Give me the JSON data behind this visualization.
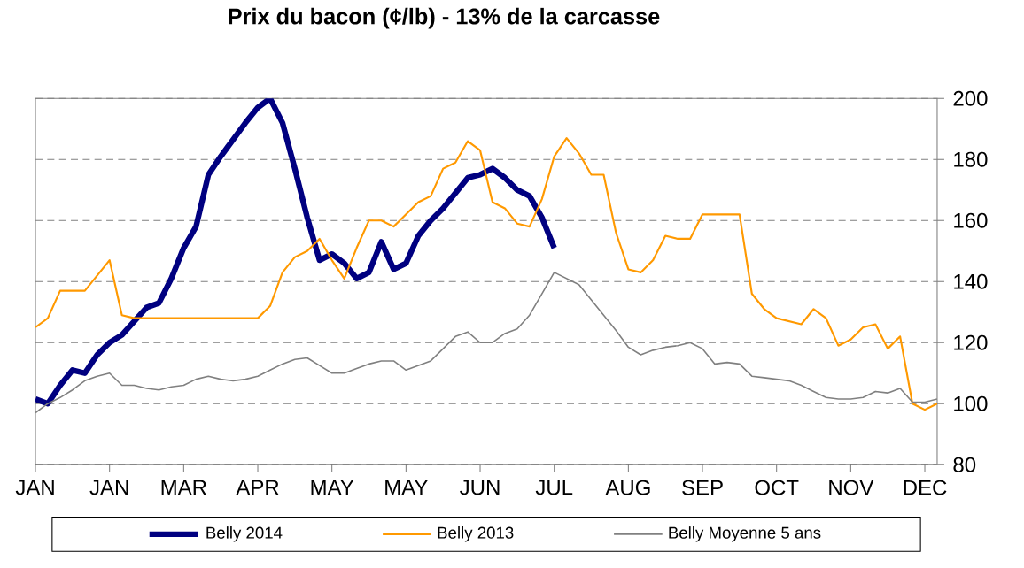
{
  "chart_data": {
    "type": "line",
    "title": "Prix du bacon (¢/lb) - 13% de la carcasse",
    "categories": [
      "JAN",
      null,
      null,
      null,
      null,
      null,
      "JAN",
      null,
      null,
      null,
      null,
      null,
      "MAR",
      null,
      null,
      null,
      null,
      null,
      "APR",
      null,
      null,
      null,
      null,
      null,
      "MAY",
      null,
      null,
      null,
      null,
      null,
      "MAY",
      null,
      null,
      null,
      null,
      null,
      "JUN",
      null,
      null,
      null,
      null,
      null,
      "JUL",
      null,
      null,
      null,
      null,
      null,
      "AUG",
      null,
      null,
      null,
      null,
      null,
      "SEP",
      null,
      null,
      null,
      null,
      null,
      "OCT",
      null,
      null,
      null,
      null,
      null,
      "NOV",
      null,
      null,
      null,
      null,
      null,
      "DEC",
      null
    ],
    "ylim": [
      80,
      200
    ],
    "yticks": [
      80,
      100,
      120,
      140,
      160,
      180,
      200
    ],
    "grid": "y",
    "legend": "bottom",
    "marker": "none",
    "series": [
      {
        "name": "Belly 2014",
        "color": "#000080",
        "values": [
          101.5,
          100,
          106,
          111,
          110,
          116,
          120,
          122.5,
          127,
          131.5,
          133,
          141,
          151,
          158,
          175,
          181,
          186.5,
          192,
          197,
          200,
          192,
          177,
          161,
          147,
          149,
          146,
          141,
          143,
          153,
          144,
          146,
          155,
          160,
          164,
          169,
          174,
          175,
          177,
          174,
          170,
          168,
          161,
          151,
          null,
          null,
          null,
          null,
          null,
          null,
          null,
          null,
          null,
          null,
          null,
          null,
          null,
          null,
          null,
          null,
          null,
          null,
          null,
          null,
          null,
          null,
          null,
          null,
          null,
          null,
          null,
          null,
          null,
          null,
          null
        ]
      },
      {
        "name": "Belly 2013",
        "color": "#ff9900",
        "values": [
          125,
          128,
          137,
          137,
          137,
          142,
          147,
          129,
          128,
          128,
          128,
          128,
          128,
          128,
          128,
          128,
          128,
          128,
          128,
          132,
          143,
          148,
          150,
          154,
          147,
          141,
          151,
          160,
          160,
          158,
          162,
          166,
          168,
          177,
          179,
          186,
          183,
          166,
          164,
          159,
          158,
          167,
          181,
          187,
          182,
          175,
          175,
          156,
          144,
          143,
          147,
          155,
          154,
          154,
          162,
          162,
          162,
          162,
          136,
          131,
          128,
          127,
          126,
          131,
          128,
          119,
          121,
          125,
          126,
          118,
          122,
          100,
          98,
          100
        ]
      },
      {
        "name": "Belly Moyenne 5 ans",
        "color": "#808080",
        "values": [
          97,
          100,
          102,
          104.5,
          107.5,
          109,
          110,
          106,
          106,
          105,
          104.5,
          105.5,
          106,
          108,
          109,
          108,
          107.5,
          108,
          109,
          111,
          113,
          114.5,
          115,
          112.5,
          110,
          110,
          111.5,
          113,
          114,
          114,
          111,
          112.5,
          114,
          118,
          122,
          123.5,
          120,
          120,
          123,
          124.5,
          129,
          136,
          143,
          141,
          139,
          134,
          129,
          124,
          118.5,
          116,
          117.5,
          118.5,
          119,
          120,
          118,
          113,
          113.5,
          113,
          109,
          108.5,
          108,
          107.5,
          106,
          104,
          102,
          101.5,
          101.5,
          102,
          104,
          103.5,
          105,
          100.5,
          100.5,
          101.5
        ]
      }
    ]
  }
}
